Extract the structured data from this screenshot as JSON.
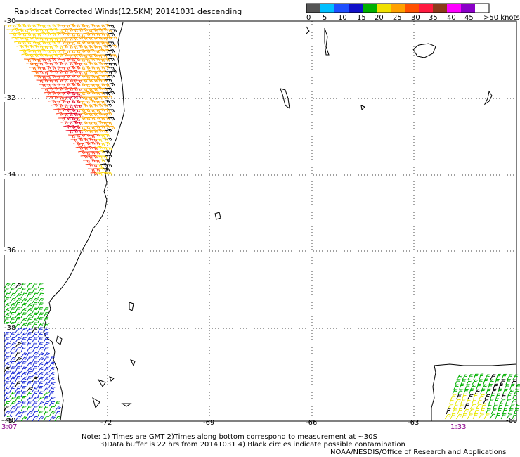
{
  "title": "Rapidscat Corrected Winds(12.5KM) 20141031 descending",
  "legend": {
    "colors": [
      "#555555",
      "#00bfff",
      "#1e4fff",
      "#1010c8",
      "#00b000",
      "#f0e000",
      "#ffa000",
      "#ff5000",
      "#ff1a40",
      "#8b3a1a",
      "#ff00ff",
      "#8a00c8",
      "#ffffff"
    ],
    "labels": [
      "0",
      "5",
      "10",
      "15",
      "20",
      "25",
      "30",
      "35",
      "40",
      "45",
      ">50 knots"
    ]
  },
  "lat_labels": [
    "-30",
    "-32",
    "-34",
    "-36",
    "-38",
    "-40"
  ],
  "lon_labels": [
    "-75",
    "-72",
    "-69",
    "-66",
    "-63",
    "-60"
  ],
  "time_labels": [
    "3:07",
    "1:33"
  ],
  "notes": [
    "Note: 1) Times are GMT 2)Times along bottom correspond to measurement at ~30S",
    "3)Data buffer is 22 hrs from 20141031 4) Black circles indicate possible contamination",
    "NOAA/NESDIS/Office of Research and Applications"
  ],
  "wind_swaths": [
    {
      "name": "northwest swath",
      "colors": [
        "#ffd700",
        "#ffa500",
        "#ff6a00",
        "#ff3d1e",
        "#e8001e",
        "#000000"
      ]
    },
    {
      "name": "southwest swath",
      "colors": [
        "#1a2bd8",
        "#00b000",
        "#000000"
      ]
    },
    {
      "name": "southeast swath",
      "colors": [
        "#00b000",
        "#e8e800",
        "#000000"
      ]
    }
  ]
}
